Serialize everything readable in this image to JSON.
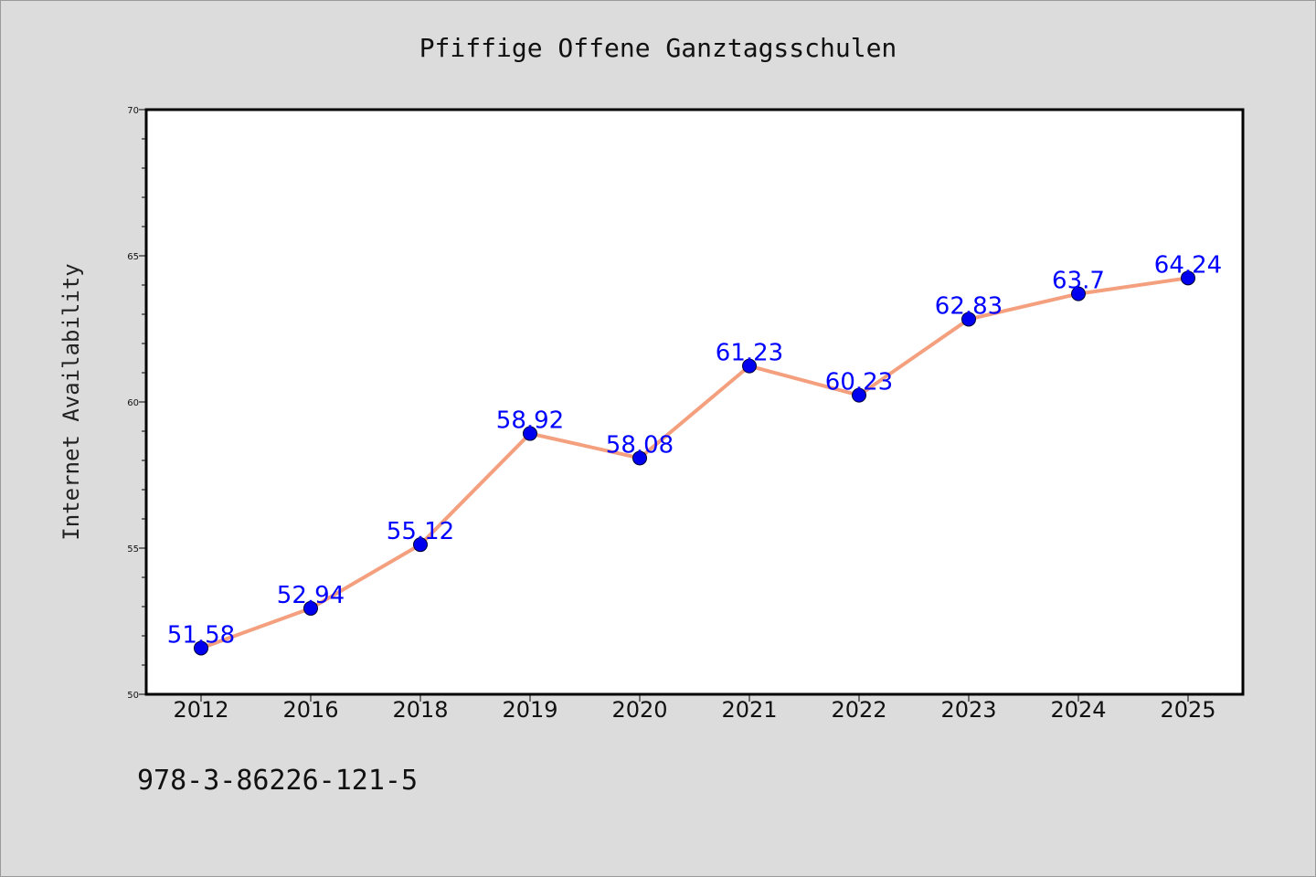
{
  "chart_data": {
    "type": "line",
    "title": "Pfiffige Offene Ganztagsschulen",
    "xlabel": "",
    "ylabel": "Internet Availability",
    "categories": [
      "2012",
      "2016",
      "2018",
      "2019",
      "2020",
      "2021",
      "2022",
      "2023",
      "2024",
      "2025"
    ],
    "series": [
      {
        "values": [
          51.58,
          52.94,
          55.12,
          58.92,
          58.08,
          61.23,
          60.23,
          62.83,
          63.7,
          64.24
        ],
        "data_labels": [
          "51.58",
          "52.94",
          "55.12",
          "58.92",
          "58.08",
          "61.23",
          "60.23",
          "62.83",
          "63.7",
          "64.24"
        ]
      }
    ],
    "ylim": [
      50,
      70
    ],
    "yticks": [
      "50",
      "55",
      "60",
      "65",
      "70"
    ],
    "grid": false,
    "legend": "none"
  },
  "footer": {
    "isbn": "978-3-86226-121-5"
  },
  "colors": {
    "background": "#dcdcdc",
    "plot_background": "#ffffff",
    "line": "#f4a07e",
    "marker": "#0000ee",
    "data_label": "#0000ff"
  }
}
